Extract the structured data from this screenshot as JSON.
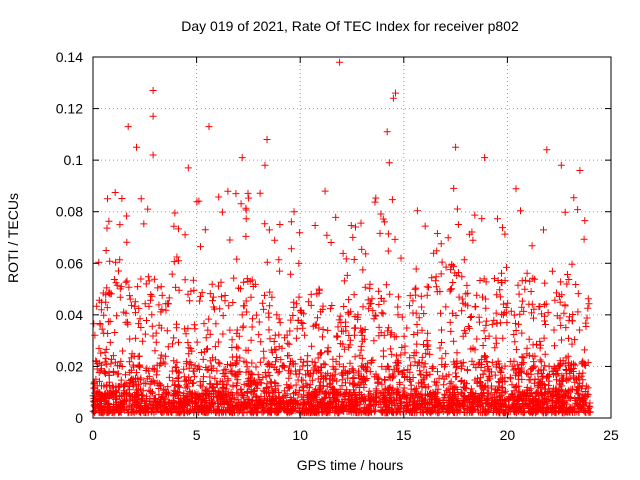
{
  "chart_data": {
    "type": "scatter",
    "title": "Day 019 of 2021, Rate Of TEC Index for receiver p802",
    "xlabel": "GPS time / hours",
    "ylabel": "ROTI / TECUs",
    "xlim": [
      0,
      25
    ],
    "ylim": [
      0,
      0.14
    ],
    "x_ticks": [
      0,
      5,
      10,
      15,
      20,
      25
    ],
    "x_tick_labels": [
      "0",
      "5",
      "10",
      "15",
      "20",
      "25"
    ],
    "y_ticks": [
      0,
      0.02,
      0.04,
      0.06,
      0.08,
      0.1,
      0.12,
      0.14
    ],
    "y_tick_labels": [
      "0",
      "0.02",
      "0.04",
      "0.06",
      "0.08",
      "0.1",
      "0.12",
      "0.14"
    ],
    "grid": true,
    "marker": "+",
    "marker_color": "#ff0000",
    "data_range_hours": [
      0,
      24
    ],
    "notable_points": [
      {
        "x": 11.9,
        "y": 0.138
      },
      {
        "x": 2.9,
        "y": 0.127
      },
      {
        "x": 2.9,
        "y": 0.117
      },
      {
        "x": 14.6,
        "y": 0.126
      },
      {
        "x": 14.5,
        "y": 0.124
      },
      {
        "x": 5.6,
        "y": 0.113
      },
      {
        "x": 1.7,
        "y": 0.113
      },
      {
        "x": 14.2,
        "y": 0.111
      },
      {
        "x": 8.4,
        "y": 0.108
      },
      {
        "x": 2.1,
        "y": 0.105
      },
      {
        "x": 17.5,
        "y": 0.105
      },
      {
        "x": 21.9,
        "y": 0.104
      },
      {
        "x": 18.9,
        "y": 0.101
      },
      {
        "x": 7.2,
        "y": 0.101
      },
      {
        "x": 2.9,
        "y": 0.102
      },
      {
        "x": 14.3,
        "y": 0.099
      },
      {
        "x": 22.6,
        "y": 0.098
      },
      {
        "x": 8.3,
        "y": 0.098
      },
      {
        "x": 4.6,
        "y": 0.097
      },
      {
        "x": 23.5,
        "y": 0.096
      },
      {
        "x": 11.2,
        "y": 0.088
      },
      {
        "x": 0.7,
        "y": 0.085
      },
      {
        "x": 9.7,
        "y": 0.08
      },
      {
        "x": 1.3,
        "y": 0.075
      }
    ],
    "bulk_points": {
      "typical_y_range": [
        0.002,
        0.02
      ],
      "frequent_upper_y": 0.06,
      "note": "dense band of many thousands of '+' markers from 0 to 24 h"
    }
  }
}
